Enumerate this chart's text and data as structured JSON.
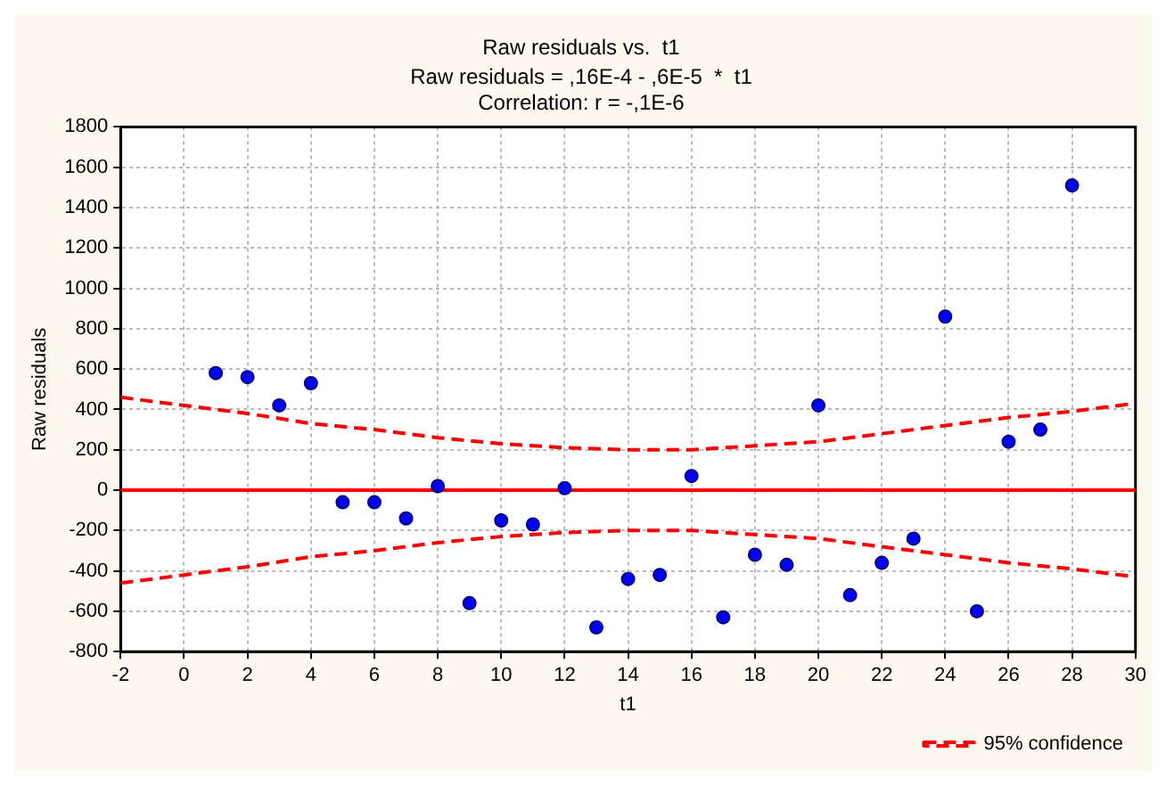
{
  "chart_data": {
    "type": "scatter",
    "title": "Raw residuals vs.  t1",
    "subtitle": "Raw residuals = ,16E-4 - ,6E-5  *  t1",
    "annotations": [
      "Correlation: r = -,1E-6"
    ],
    "xlabel": "t1",
    "ylabel": "Raw residuals",
    "xlim": [
      -2,
      30
    ],
    "xticks": [
      -2,
      0,
      2,
      4,
      6,
      8,
      10,
      12,
      14,
      16,
      18,
      20,
      22,
      24,
      26,
      28,
      30
    ],
    "ylim": [
      -800,
      1800
    ],
    "yticks": [
      -800,
      -600,
      -400,
      -200,
      0,
      200,
      400,
      600,
      800,
      1000,
      1200,
      1400,
      1600,
      1800
    ],
    "grid": true,
    "legend": "bottom right",
    "series": [
      {
        "type": "scatter",
        "color": "#0000ff",
        "marker": "circle",
        "x": [
          1,
          2,
          3,
          4,
          5,
          6,
          7,
          8,
          9,
          10,
          11,
          12,
          13,
          14,
          15,
          16,
          17,
          18,
          19,
          20,
          21,
          22,
          23,
          24,
          25,
          26,
          27,
          28
        ],
        "values": [
          580,
          560,
          420,
          530,
          -60,
          -60,
          -140,
          20,
          -560,
          -150,
          -170,
          10,
          -680,
          -440,
          -420,
          70,
          -630,
          -320,
          -370,
          420,
          -520,
          -360,
          -240,
          860,
          -600,
          240,
          300,
          1510
        ]
      },
      {
        "type": "line",
        "color": "#ff0000",
        "line_style": "solid",
        "marker": "none",
        "x": [
          -2,
          30
        ],
        "values": [
          0,
          0
        ]
      },
      {
        "type": "line",
        "name": "95% confidence",
        "color": "#ff0000",
        "line_style": "dashed",
        "marker": "none",
        "x": [
          -2,
          0,
          2,
          4,
          6,
          8,
          10,
          12,
          14,
          16,
          18,
          20,
          22,
          24,
          26,
          28,
          30
        ],
        "values": [
          460,
          420,
          380,
          330,
          300,
          260,
          230,
          210,
          200,
          200,
          220,
          240,
          280,
          320,
          360,
          390,
          430
        ]
      },
      {
        "type": "line",
        "color": "#ff0000",
        "line_style": "dashed",
        "marker": "none",
        "x": [
          -2,
          0,
          2,
          4,
          6,
          8,
          10,
          12,
          14,
          16,
          18,
          20,
          22,
          24,
          26,
          28,
          30
        ],
        "values": [
          -460,
          -420,
          -380,
          -330,
          -300,
          -260,
          -230,
          -210,
          -200,
          -200,
          -220,
          -240,
          -280,
          -320,
          -360,
          -390,
          -430
        ]
      }
    ]
  }
}
